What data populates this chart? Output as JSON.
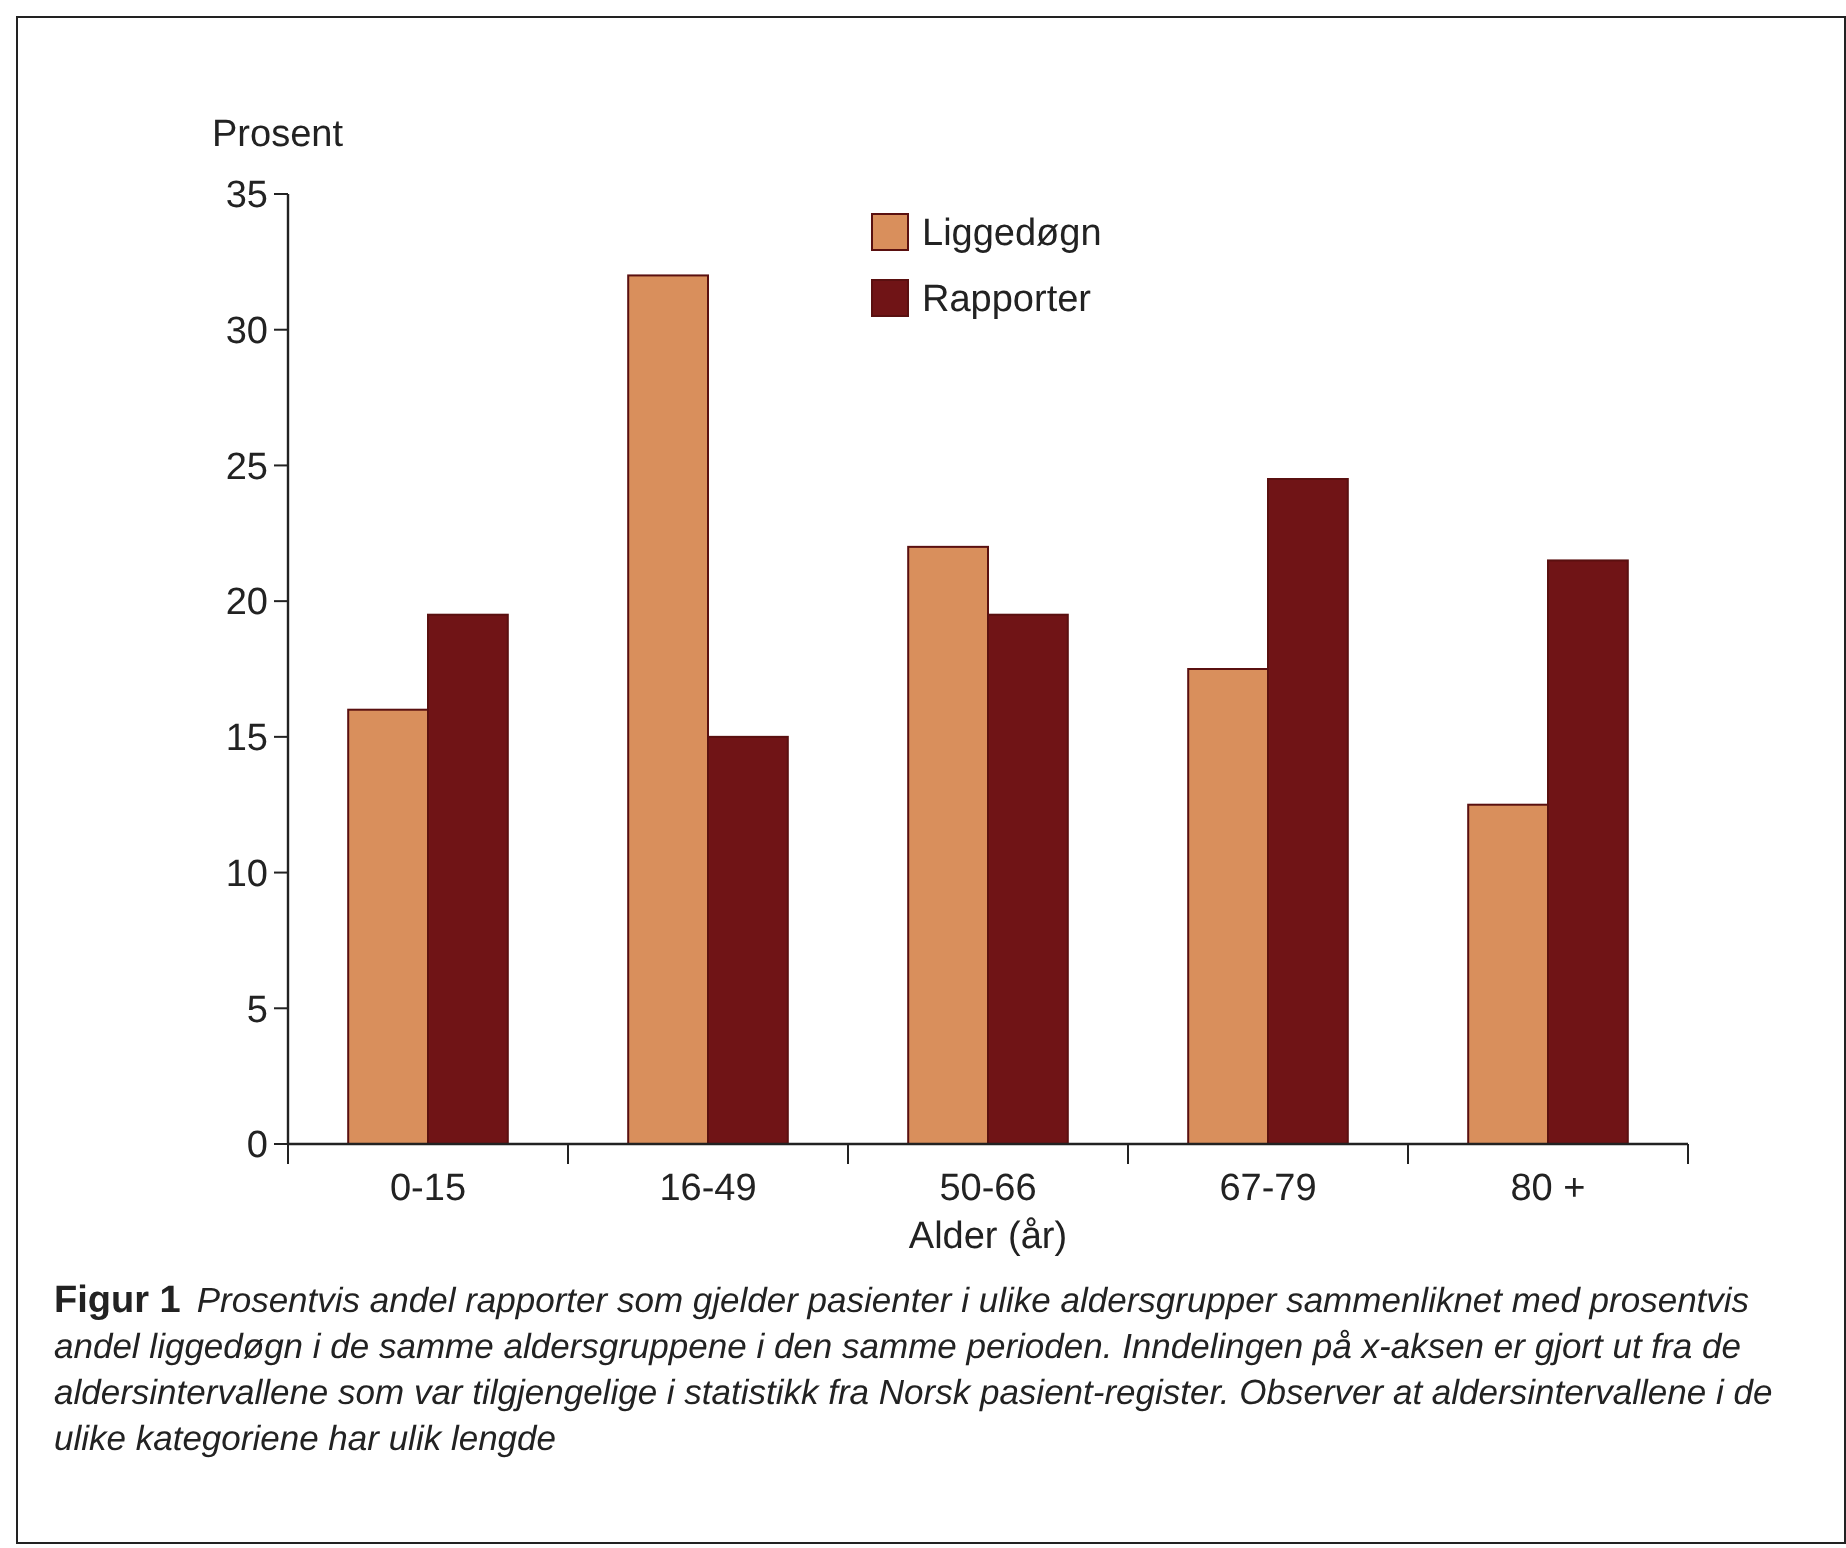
{
  "chart_data": {
    "type": "bar",
    "title": "Figur 1",
    "ylabel": "Prosent",
    "xlabel": "Alder (år)",
    "categories": [
      "0-15",
      "16-49",
      "50-66",
      "67-79",
      "80 +"
    ],
    "series": [
      {
        "name": "Liggedøgn",
        "color": "#d98f5c",
        "values": [
          16,
          32,
          22,
          17.5,
          12.5
        ]
      },
      {
        "name": "Rapporter",
        "color": "#701416",
        "values": [
          19.5,
          15,
          19.5,
          24.5,
          21.5
        ]
      }
    ],
    "ylim": [
      0,
      35
    ],
    "yticks": [
      0,
      5,
      10,
      15,
      20,
      25,
      30,
      35
    ],
    "grid": false,
    "legend": "top",
    "annotations": [
      "Prosentvis andel rapporter som gjelder pasienter i ulike aldersgrupper sammenliknet med prosentvis andel liggedøgn i de samme aldersgruppene i den samme perioden. Inndelingen på x-aksen er gjort ut fra de aldersintervallene som var tilgjengelige i statistikk fra Norsk pasient-register. Observer at aldersintervallene i de ulike kategoriene har ulik lengde"
    ]
  }
}
